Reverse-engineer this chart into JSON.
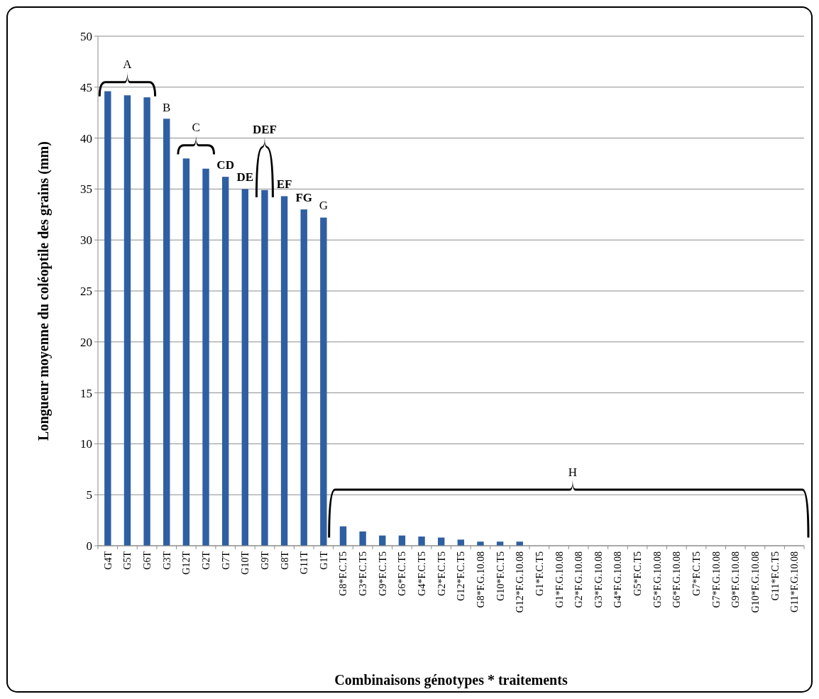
{
  "chart_data": {
    "type": "bar",
    "xlabel": "Combinaisons génotypes * traitements",
    "ylabel": "Longueur moyenne du coléoptile des grains (mm)",
    "categories": [
      "G4T",
      "G5T",
      "G6T",
      "G3T",
      "G12T",
      "G2T",
      "G7T",
      "G10T",
      "G9T",
      "G8T",
      "G11T",
      "G1T",
      "G8*F.C.T5",
      "G3*F.C.T5",
      "G9*F.C.T5",
      "G6*F.C.T5",
      "G4*F.C.T5",
      "G2*F.C.T5",
      "G12*F.C.T5",
      "G8*F.G.10.08",
      "G10*F.C.T5",
      "G12*F.G.10.08",
      "G1*F.C.T5",
      "G1*F.G.10.08",
      "G2*F.G.10.08",
      "G3*F.G.10.08",
      "G4*F.G.10.08",
      "G5*F.C.T5",
      "G5*F.G.10.08",
      "G6*F.G.10.08",
      "G7*F.C.T5",
      "G7*F.G.10.08",
      "G9*F.G.10.08",
      "G10*F.G.10.08",
      "G11*F.C.T5",
      "G11*F.G.10.08"
    ],
    "values": [
      44.6,
      44.2,
      44.0,
      41.9,
      38.0,
      37.0,
      36.2,
      35.0,
      34.9,
      34.3,
      33.0,
      32.2,
      1.9,
      1.4,
      1.0,
      1.0,
      0.9,
      0.8,
      0.6,
      0.4,
      0.4,
      0.4,
      0,
      0,
      0,
      0,
      0,
      0,
      0,
      0,
      0,
      0,
      0,
      0,
      0,
      0
    ],
    "color": "#2f5fa3",
    "ylim": [
      0,
      50
    ],
    "yticks": [
      0,
      5,
      10,
      15,
      20,
      25,
      30,
      35,
      40,
      45,
      50
    ],
    "grid": "y",
    "annotations": [
      "A",
      "B",
      "C",
      "CD",
      "DE",
      "DEF",
      "EF",
      "FG",
      "G",
      "H"
    ]
  }
}
